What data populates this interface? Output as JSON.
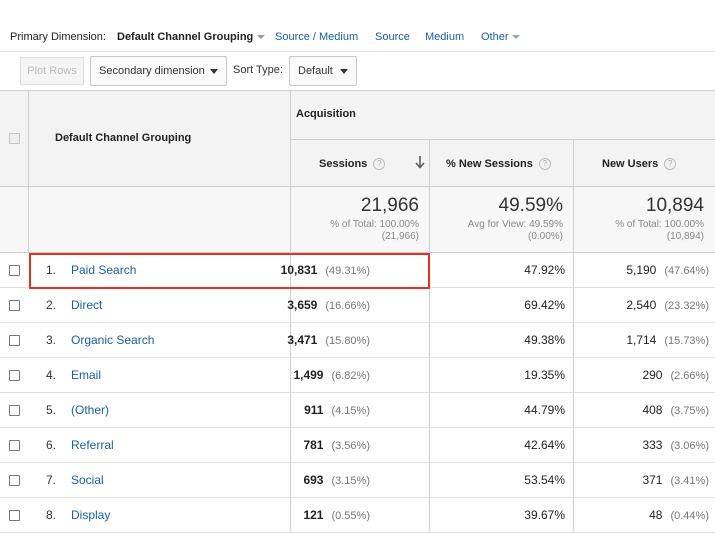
{
  "dimension_bar": {
    "label": "Primary Dimension:",
    "current": "Default Channel Grouping",
    "links": [
      "Source / Medium",
      "Source",
      "Medium",
      "Other"
    ]
  },
  "toolbar": {
    "plot_rows": "Plot Rows",
    "secondary_dimension": "Secondary dimension",
    "sort_type_label": "Sort Type:",
    "sort_type_value": "Default"
  },
  "table": {
    "dimension_header": "Default Channel Grouping",
    "group_header": "Acquisition",
    "columns": [
      "Sessions",
      "% New Sessions",
      "New Users"
    ],
    "help_glyph": "?",
    "totals": {
      "sessions": "21,966",
      "sessions_sub1": "% of Total: 100.00%",
      "sessions_sub2": "(21,966)",
      "new_sessions": "49.59%",
      "new_sessions_sub1": "Avg for View: 49.59%",
      "new_sessions_sub2": "(0.00%)",
      "new_users": "10,894",
      "new_users_sub1": "% of Total: 100.00%",
      "new_users_sub2": "(10,894)"
    },
    "rows": [
      {
        "num": "1.",
        "name": "Paid Search",
        "sessions": "10,831",
        "sessions_pct": "(49.31%)",
        "new_sessions": "47.92%",
        "new_users": "5,190",
        "new_users_pct": "(47.64%)"
      },
      {
        "num": "2.",
        "name": "Direct",
        "sessions": "3,659",
        "sessions_pct": "(16.66%)",
        "new_sessions": "69.42%",
        "new_users": "2,540",
        "new_users_pct": "(23.32%)"
      },
      {
        "num": "3.",
        "name": "Organic Search",
        "sessions": "3,471",
        "sessions_pct": "(15.80%)",
        "new_sessions": "49.38%",
        "new_users": "1,714",
        "new_users_pct": "(15.73%)"
      },
      {
        "num": "4.",
        "name": "Email",
        "sessions": "1,499",
        "sessions_pct": "(6.82%)",
        "new_sessions": "19.35%",
        "new_users": "290",
        "new_users_pct": "(2.66%)"
      },
      {
        "num": "5.",
        "name": "(Other)",
        "sessions": "911",
        "sessions_pct": "(4.15%)",
        "new_sessions": "44.79%",
        "new_users": "408",
        "new_users_pct": "(3.75%)"
      },
      {
        "num": "6.",
        "name": "Referral",
        "sessions": "781",
        "sessions_pct": "(3.56%)",
        "new_sessions": "42.64%",
        "new_users": "333",
        "new_users_pct": "(3.06%)"
      },
      {
        "num": "7.",
        "name": "Social",
        "sessions": "693",
        "sessions_pct": "(3.15%)",
        "new_sessions": "53.54%",
        "new_users": "371",
        "new_users_pct": "(3.41%)"
      },
      {
        "num": "8.",
        "name": "Display",
        "sessions": "121",
        "sessions_pct": "(0.55%)",
        "new_sessions": "39.67%",
        "new_users": "48",
        "new_users_pct": "(0.44%)"
      }
    ]
  },
  "colors": {
    "link": "#1a5ea8",
    "highlight": "#e8311c"
  }
}
